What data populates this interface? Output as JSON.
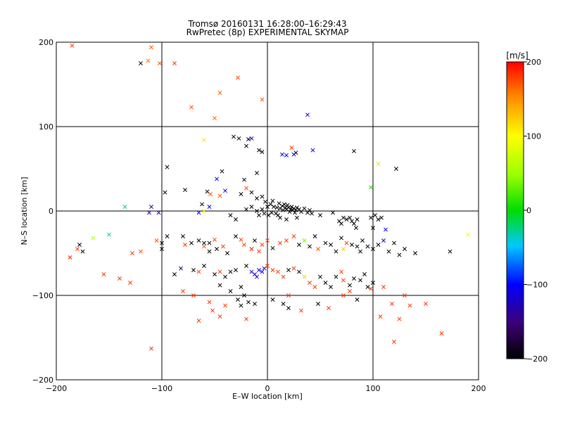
{
  "chart_data": {
    "type": "scatter",
    "title_line1": "Tromsø 20160131 16:28:00–16:29:43",
    "title_line2": "RwPretec (8p) EXPERIMENTAL SKYMAP",
    "xlabel": "E–W location [km]",
    "ylabel": "N–S location [km]",
    "xlim": [
      -200,
      200
    ],
    "ylim": [
      -200,
      200
    ],
    "xticks": [
      -200,
      -100,
      0,
      100,
      200
    ],
    "yticks": [
      -200,
      -100,
      0,
      100,
      200
    ],
    "xtick_labels": [
      "−200",
      "−100",
      "0",
      "100",
      "200"
    ],
    "ytick_labels": [
      "−200",
      "−100",
      "0",
      "100",
      "200"
    ],
    "grid_lines": [
      -100,
      0,
      100
    ],
    "colorbar": {
      "label": "[m/s]",
      "range": [
        -200,
        200
      ],
      "ticks": [
        200,
        100,
        0,
        -100,
        -200
      ],
      "tick_labels": [
        "200",
        "100",
        "0",
        "−100",
        "−200"
      ]
    },
    "cross_points": [
      [
        -185,
        196,
        180
      ],
      [
        -110,
        194,
        170
      ],
      [
        -113,
        178,
        160
      ],
      [
        -120,
        175,
        -180
      ],
      [
        -102,
        175,
        170
      ],
      [
        -88,
        175,
        180
      ],
      [
        -28,
        158,
        175
      ],
      [
        -50,
        110,
        160
      ],
      [
        -72,
        123,
        170
      ],
      [
        -5,
        132,
        170
      ],
      [
        -45,
        140,
        165
      ],
      [
        38,
        114,
        -110
      ],
      [
        -32,
        88,
        -190
      ],
      [
        -27,
        86,
        -190
      ],
      [
        -15,
        86,
        -110
      ],
      [
        -18,
        85,
        -200
      ],
      [
        -20,
        77,
        -200
      ],
      [
        -8,
        72,
        -200
      ],
      [
        -5,
        70,
        -200
      ],
      [
        27,
        69,
        -200
      ],
      [
        14,
        67,
        -100
      ],
      [
        25,
        67,
        -100
      ],
      [
        18,
        66,
        -100
      ],
      [
        43,
        72,
        -110
      ],
      [
        82,
        71,
        -200
      ],
      [
        23,
        75,
        180
      ],
      [
        -60,
        84,
        110
      ],
      [
        105,
        56,
        70
      ],
      [
        122,
        50,
        -200
      ],
      [
        -95,
        52,
        -200
      ],
      [
        -43,
        47,
        -190
      ],
      [
        -10,
        45,
        -190
      ],
      [
        -22,
        37,
        -190
      ],
      [
        -48,
        38,
        -100
      ],
      [
        -97,
        22,
        -200
      ],
      [
        -78,
        25,
        -190
      ],
      [
        -57,
        23,
        -200
      ],
      [
        -54,
        20,
        170
      ],
      [
        -45,
        18,
        170
      ],
      [
        -40,
        24,
        -110
      ],
      [
        -20,
        27,
        175
      ],
      [
        -25,
        20,
        -200
      ],
      [
        -15,
        22,
        -200
      ],
      [
        -5,
        17,
        -200
      ],
      [
        -10,
        15,
        -200
      ],
      [
        -2,
        11,
        -200
      ],
      [
        5,
        12,
        -200
      ],
      [
        98,
        28,
        10
      ],
      [
        -62,
        8,
        -190
      ],
      [
        -55,
        5,
        -110
      ],
      [
        -110,
        5,
        -140
      ],
      [
        -135,
        5,
        -30
      ],
      [
        -112,
        -2,
        -120
      ],
      [
        -103,
        -2,
        -120
      ],
      [
        -65,
        -2,
        -110
      ],
      [
        -60,
        0,
        100
      ],
      [
        -20,
        2,
        -200
      ],
      [
        -15,
        5,
        -200
      ],
      [
        -10,
        0,
        -200
      ],
      [
        -5,
        2,
        -200
      ],
      [
        0,
        5,
        -200
      ],
      [
        3,
        8,
        -200
      ],
      [
        6,
        5,
        -200
      ],
      [
        9,
        4,
        -200
      ],
      [
        11,
        9,
        -200
      ],
      [
        12,
        3,
        -200
      ],
      [
        14,
        6,
        -200
      ],
      [
        15,
        1,
        -200
      ],
      [
        16,
        8,
        -200
      ],
      [
        17,
        4,
        -200
      ],
      [
        18,
        2,
        -200
      ],
      [
        19,
        7,
        -200
      ],
      [
        20,
        4,
        -200
      ],
      [
        21,
        -1,
        -200
      ],
      [
        22,
        2,
        -200
      ],
      [
        23,
        5,
        -200
      ],
      [
        24,
        1,
        -200
      ],
      [
        25,
        3,
        -200
      ],
      [
        26,
        -2,
        -200
      ],
      [
        27,
        1,
        -200
      ],
      [
        28,
        4,
        -200
      ],
      [
        30,
        2,
        -200
      ],
      [
        32,
        -1,
        -200
      ],
      [
        35,
        3,
        -200
      ],
      [
        38,
        -2,
        -200
      ],
      [
        40,
        1,
        -200
      ],
      [
        42,
        -3,
        -200
      ],
      [
        10,
        -5,
        -200
      ],
      [
        8,
        -3,
        -200
      ],
      [
        4,
        -2,
        -200
      ],
      [
        1,
        -5,
        -200
      ],
      [
        -3,
        -3,
        -200
      ],
      [
        -8,
        -5,
        -200
      ],
      [
        -30,
        -10,
        -200
      ],
      [
        -35,
        -5,
        -200
      ],
      [
        12,
        -8,
        -200
      ],
      [
        18,
        -10,
        -200
      ],
      [
        28,
        -8,
        -200
      ],
      [
        50,
        -5,
        -200
      ],
      [
        62,
        -2,
        -200
      ],
      [
        72,
        -8,
        -200
      ],
      [
        75,
        -10,
        -200
      ],
      [
        78,
        -8,
        -200
      ],
      [
        80,
        -12,
        -200
      ],
      [
        85,
        -10,
        -200
      ],
      [
        98,
        -8,
        -200
      ],
      [
        105,
        -10,
        -200
      ],
      [
        70,
        -15,
        -200
      ],
      [
        68,
        -12,
        -200
      ],
      [
        82,
        -15,
        -200
      ],
      [
        84,
        -20,
        -200
      ],
      [
        102,
        -5,
        -200
      ],
      [
        108,
        -8,
        -200
      ],
      [
        -150,
        -28,
        -30
      ],
      [
        -165,
        -32,
        60
      ],
      [
        -178,
        -40,
        -200
      ],
      [
        -175,
        -48,
        -200
      ],
      [
        -180,
        -45,
        180
      ],
      [
        -187,
        -55,
        190
      ],
      [
        -120,
        -48,
        170
      ],
      [
        -128,
        -50,
        180
      ],
      [
        -105,
        -35,
        170
      ],
      [
        -100,
        -38,
        -200
      ],
      [
        -80,
        -30,
        -200
      ],
      [
        -78,
        -40,
        180
      ],
      [
        -72,
        -38,
        -200
      ],
      [
        -65,
        -35,
        -200
      ],
      [
        -60,
        -42,
        170
      ],
      [
        -55,
        -38,
        -200
      ],
      [
        -50,
        -34,
        175
      ],
      [
        -48,
        -45,
        -200
      ],
      [
        -42,
        -42,
        180
      ],
      [
        -38,
        -50,
        -200
      ],
      [
        -30,
        -30,
        -200
      ],
      [
        -25,
        -34,
        180
      ],
      [
        -22,
        -40,
        175
      ],
      [
        -15,
        -45,
        190
      ],
      [
        -12,
        -35,
        -200
      ],
      [
        -8,
        -48,
        180
      ],
      [
        -5,
        -40,
        180
      ],
      [
        0,
        -35,
        175
      ],
      [
        5,
        -44,
        -200
      ],
      [
        12,
        -38,
        185
      ],
      [
        18,
        -35,
        180
      ],
      [
        25,
        -30,
        180
      ],
      [
        30,
        -40,
        -200
      ],
      [
        35,
        -35,
        40
      ],
      [
        40,
        -42,
        -200
      ],
      [
        45,
        -30,
        -200
      ],
      [
        48,
        -45,
        170
      ],
      [
        55,
        -38,
        -200
      ],
      [
        60,
        -40,
        -200
      ],
      [
        65,
        -48,
        -200
      ],
      [
        70,
        -32,
        -200
      ],
      [
        72,
        -45,
        120
      ],
      [
        75,
        -38,
        180
      ],
      [
        80,
        -40,
        -200
      ],
      [
        85,
        -42,
        -200
      ],
      [
        88,
        -48,
        -200
      ],
      [
        90,
        -35,
        -200
      ],
      [
        95,
        -42,
        -200
      ],
      [
        100,
        -45,
        -200
      ],
      [
        105,
        -40,
        -200
      ],
      [
        110,
        -35,
        -120
      ],
      [
        115,
        -48,
        -200
      ],
      [
        120,
        -38,
        -200
      ],
      [
        125,
        -52,
        -200
      ],
      [
        130,
        -45,
        -200
      ],
      [
        140,
        -50,
        -200
      ],
      [
        173,
        -48,
        -200
      ],
      [
        190,
        -28,
        90
      ],
      [
        112,
        -22,
        -110
      ],
      [
        100,
        -20,
        -200
      ],
      [
        -82,
        -68,
        -160
      ],
      [
        -88,
        -75,
        -200
      ],
      [
        -70,
        -70,
        -200
      ],
      [
        -65,
        -72,
        180
      ],
      [
        -60,
        -65,
        -200
      ],
      [
        -50,
        -75,
        -200
      ],
      [
        -45,
        -72,
        180
      ],
      [
        -40,
        -78,
        -200
      ],
      [
        -35,
        -72,
        -200
      ],
      [
        -30,
        -70,
        -200
      ],
      [
        -20,
        -65,
        -200
      ],
      [
        -15,
        -72,
        -120
      ],
      [
        -12,
        -75,
        -120
      ],
      [
        -10,
        -78,
        -120
      ],
      [
        -8,
        -70,
        -120
      ],
      [
        -5,
        -72,
        -100
      ],
      [
        -3,
        -68,
        -120
      ],
      [
        0,
        -65,
        180
      ],
      [
        5,
        -70,
        180
      ],
      [
        10,
        -72,
        180
      ],
      [
        15,
        -78,
        180
      ],
      [
        20,
        -70,
        -200
      ],
      [
        25,
        -68,
        180
      ],
      [
        30,
        -72,
        -200
      ],
      [
        35,
        -78,
        120
      ],
      [
        40,
        -85,
        180
      ],
      [
        45,
        -90,
        180
      ],
      [
        50,
        -78,
        -200
      ],
      [
        55,
        -85,
        -200
      ],
      [
        60,
        -90,
        -200
      ],
      [
        65,
        -78,
        -200
      ],
      [
        70,
        -72,
        180
      ],
      [
        72,
        -82,
        180
      ],
      [
        78,
        -88,
        -200
      ],
      [
        82,
        -80,
        -200
      ],
      [
        88,
        -82,
        -200
      ],
      [
        92,
        -75,
        -200
      ],
      [
        95,
        -90,
        -200
      ],
      [
        100,
        -85,
        -200
      ],
      [
        -45,
        -88,
        -200
      ],
      [
        -35,
        -95,
        -200
      ],
      [
        -25,
        -90,
        -200
      ],
      [
        -22,
        -100,
        -200
      ],
      [
        -28,
        -105,
        -200
      ],
      [
        -18,
        -108,
        -200
      ],
      [
        -12,
        -110,
        -200
      ],
      [
        -25,
        -112,
        -200
      ],
      [
        5,
        -105,
        -200
      ],
      [
        15,
        -110,
        -200
      ],
      [
        20,
        -115,
        -200
      ],
      [
        -80,
        -95,
        180
      ],
      [
        -70,
        -100,
        180
      ],
      [
        -55,
        -108,
        180
      ],
      [
        -52,
        -118,
        180
      ],
      [
        -40,
        -112,
        180
      ],
      [
        20,
        -100,
        180
      ],
      [
        32,
        -118,
        180
      ],
      [
        48,
        -110,
        -200
      ],
      [
        58,
        -115,
        180
      ],
      [
        72,
        -100,
        180
      ],
      [
        78,
        -95,
        180
      ],
      [
        85,
        -105,
        -200
      ],
      [
        98,
        -92,
        180
      ],
      [
        110,
        -90,
        180
      ],
      [
        118,
        -110,
        180
      ],
      [
        130,
        -100,
        180
      ],
      [
        135,
        -112,
        180
      ],
      [
        150,
        -110,
        180
      ],
      [
        107,
        -125,
        180
      ],
      [
        125,
        -128,
        180
      ],
      [
        -110,
        -163,
        180
      ],
      [
        -65,
        -130,
        180
      ],
      [
        -45,
        -125,
        180
      ],
      [
        -20,
        -128,
        180
      ],
      [
        165,
        -145,
        180
      ],
      [
        120,
        -155,
        180
      ],
      [
        -155,
        -75,
        180
      ],
      [
        -140,
        -80,
        180
      ],
      [
        -130,
        -85,
        180
      ],
      [
        -60,
        -38,
        -200
      ],
      [
        -55,
        -48,
        -200
      ],
      [
        -100,
        -45,
        -200
      ],
      [
        -95,
        -30,
        -200
      ]
    ]
  },
  "colors": {
    "black": "#000000",
    "purple": "#5a0080",
    "blue": "#0000ff",
    "cyan": "#00c8ff",
    "green": "#00dc00",
    "yellow": "#ffff00",
    "orange": "#ff8c00",
    "red": "#ff0000"
  }
}
